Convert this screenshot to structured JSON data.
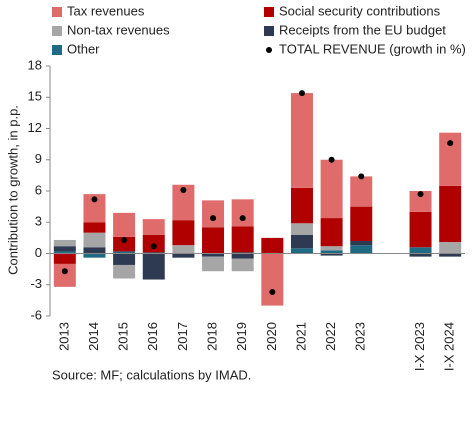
{
  "chart_data": {
    "type": "bar",
    "stacked": true,
    "y_label": "Contribution to growth, in p.p.",
    "source": "Source: MF; calculations by IMAD.",
    "categories": [
      "2013",
      "2014",
      "2015",
      "2016",
      "2017",
      "2018",
      "2019",
      "2020",
      "2021",
      "2022",
      "2023",
      null,
      "I-X 2023",
      "I-X 2024"
    ],
    "ylim": [
      -6,
      18
    ],
    "yticks": [
      -6,
      -3,
      0,
      3,
      6,
      9,
      12,
      15,
      18
    ],
    "grid": false,
    "series": [
      {
        "name": "Other",
        "color": "#1f6b84",
        "values": [
          0.2,
          -0.4,
          0.2,
          0.1,
          0,
          0,
          0.1,
          0,
          0.5,
          0.3,
          0.8,
          null,
          0.6,
          0
        ]
      },
      {
        "name": "Receipts from the EU budget",
        "color": "#2e3a52",
        "values": [
          0.5,
          0.6,
          -1.1,
          -2.5,
          -0.4,
          -0.3,
          -0.5,
          0,
          1.3,
          -0.2,
          0.4,
          null,
          -0.3,
          -0.3
        ]
      },
      {
        "name": "Non-tax revenues",
        "color": "#a6a6a6",
        "values": [
          0.6,
          1.4,
          -1.3,
          0,
          0.8,
          -1.4,
          -1.2,
          0,
          1.1,
          0.4,
          0,
          null,
          0,
          1.1
        ]
      },
      {
        "name": "Social security contributions",
        "color": "#b00000",
        "values": [
          -1.0,
          1.0,
          1.4,
          1.7,
          2.4,
          2.5,
          2.5,
          1.5,
          3.4,
          2.7,
          3.3,
          null,
          3.4,
          5.4
        ]
      },
      {
        "name": "Tax revenues",
        "color": "#e06b6b",
        "values": [
          -2.2,
          2.7,
          2.3,
          1.5,
          3.4,
          2.6,
          2.6,
          -5.0,
          9.1,
          5.6,
          2.9,
          null,
          2.0,
          5.1
        ]
      },
      {
        "name": "TOTAL REVENUE (growth in %)",
        "color": "#000000",
        "type": "dot",
        "values": [
          -1.7,
          5.2,
          1.3,
          0.7,
          6.1,
          3.4,
          3.4,
          -3.7,
          15.4,
          9.0,
          7.4,
          null,
          5.7,
          10.6
        ]
      }
    ],
    "legend_order": [
      4,
      3,
      2,
      1,
      0,
      5
    ]
  }
}
